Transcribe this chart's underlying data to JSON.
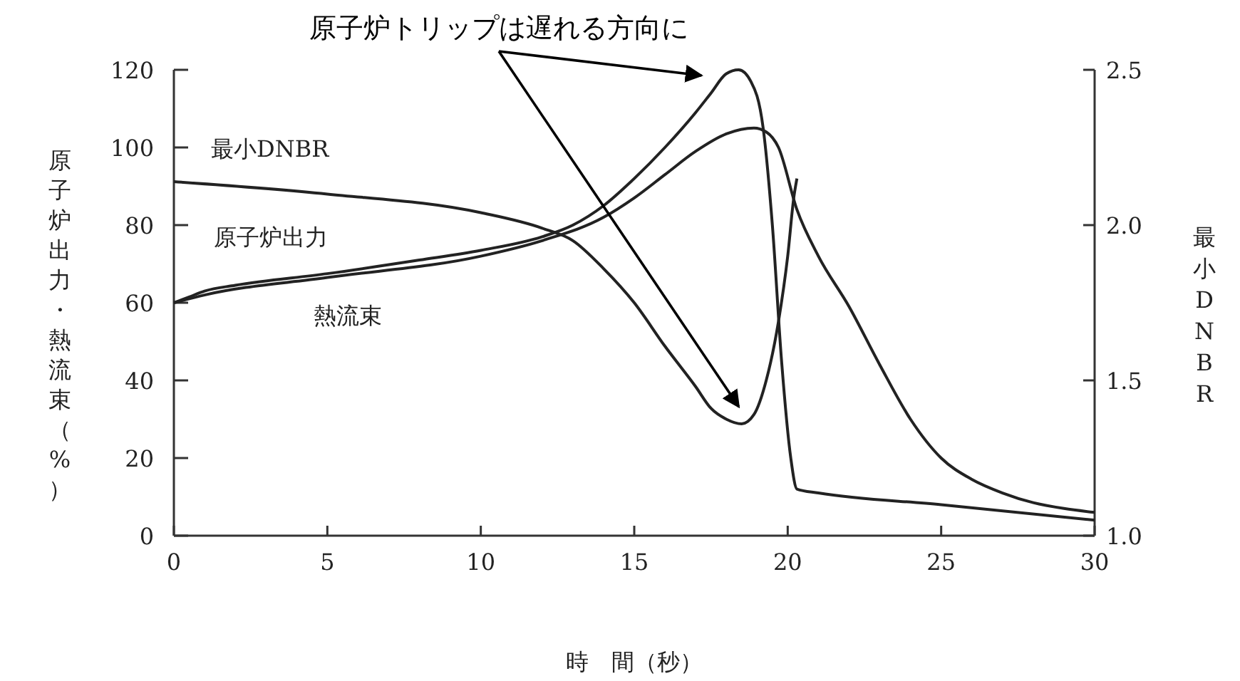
{
  "chart_data": {
    "type": "line",
    "xlabel": "時　間（秒）",
    "ylabel": "原子炉出力・熱流束（%）",
    "y2label": "最小DNBR",
    "annotations": [
      "原子炉トリップは遅れる方向に"
    ],
    "xlim": [
      0,
      30
    ],
    "xticks": [
      0,
      5,
      10,
      15,
      20,
      25,
      30
    ],
    "ylim": [
      0,
      120
    ],
    "yticks": [
      0,
      20,
      40,
      60,
      80,
      100,
      120
    ],
    "y2lim": [
      1.0,
      2.5
    ],
    "y2ticks": [
      {
        "value": 1.0,
        "label": "1.0"
      },
      {
        "value": 1.5,
        "label": "1.5"
      },
      {
        "value": 2.0,
        "label": "2.0"
      },
      {
        "value": 2.5,
        "label": "2.5"
      }
    ],
    "grid": false,
    "legend": false,
    "marker": "none",
    "line_style": "solid",
    "series": [
      {
        "name": "原子炉出力",
        "color": "#222222",
        "x": [
          0,
          0.5,
          1,
          2,
          5,
          8,
          10,
          12,
          13,
          14,
          15,
          16,
          17,
          17.5,
          18,
          18.4,
          18.8,
          19.2,
          19.5,
          19.8,
          20.1,
          20.3,
          21,
          25,
          30
        ],
        "values": [
          60,
          61.5,
          63,
          64.5,
          67.5,
          71,
          73.5,
          77,
          80,
          85,
          92,
          100,
          109,
          114,
          119,
          120,
          117,
          105,
          80,
          45,
          20,
          12,
          11,
          8,
          4
        ]
      },
      {
        "name": "熱流束",
        "color": "#222222",
        "x": [
          0,
          1,
          5,
          10,
          12,
          14,
          15,
          16,
          17,
          18,
          18.9,
          19.3,
          19.7,
          20.3,
          21,
          22,
          23,
          24,
          25,
          26,
          27,
          28,
          29,
          30
        ],
        "values": [
          60,
          62,
          66.5,
          72,
          76,
          82,
          87,
          93,
          99,
          103.5,
          105,
          104,
          100,
          84,
          72,
          59,
          44,
          30,
          20,
          14.5,
          11,
          8.5,
          7,
          6
        ]
      },
      {
        "name": "最小DNBR",
        "color": "#222222",
        "axis": "y2",
        "x": [
          0,
          5,
          10,
          12,
          13,
          14,
          15,
          16,
          17,
          17.5,
          18,
          18.5,
          18.9,
          19.3,
          19.7,
          20,
          20.2,
          20.3
        ],
        "values": [
          2.14,
          2.1,
          2.04,
          1.99,
          1.95,
          1.86,
          1.75,
          1.61,
          1.48,
          1.41,
          1.375,
          1.36,
          1.39,
          1.5,
          1.69,
          1.9,
          2.09,
          2.15
        ]
      }
    ]
  }
}
